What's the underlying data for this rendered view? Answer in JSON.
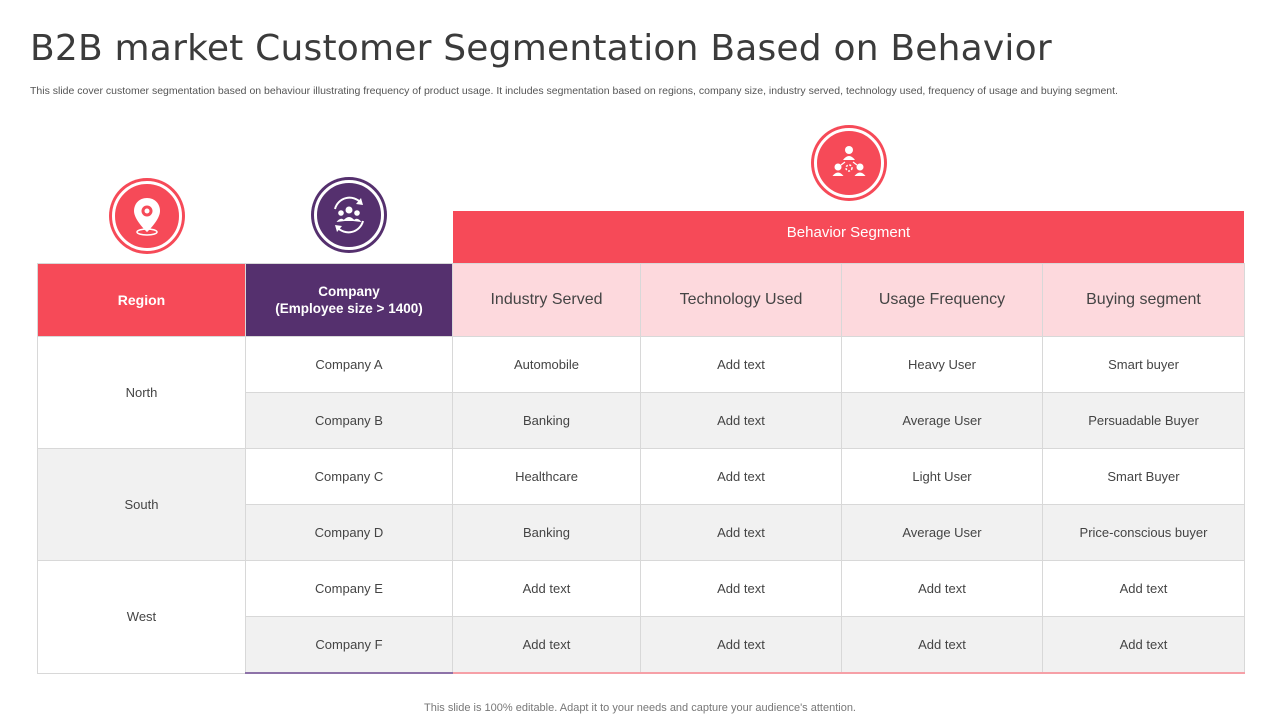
{
  "title": "B2B market Customer Segmentation Based on Behavior",
  "subtitle": "This slide cover customer segmentation based on behaviour illustrating frequency of product usage. It includes segmentation based on regions, company size, industry served, technology used, frequency of  usage and  buying segment.",
  "icons": {
    "region": "location-pin-icon",
    "company": "team-cycle-icon",
    "behavior": "network-people-icon"
  },
  "colors": {
    "accent_red": "#f64a58",
    "accent_purple": "#55306e",
    "header_pink": "#fdd9dd",
    "row_alt": "#f1f1f1"
  },
  "behavior_segment_label": "Behavior Segment",
  "table": {
    "headers": {
      "region": "Region",
      "company_line1": "Company",
      "company_line2": "(Employee size > 1400)",
      "industry": "Industry  Served",
      "technology": "Technology  Used",
      "usage": "Usage Frequency",
      "buying": "Buying segment"
    },
    "regions": [
      "North",
      "South",
      "West"
    ],
    "rows": [
      {
        "company": "Company A",
        "industry": "Automobile",
        "technology": "Add text",
        "usage": "Heavy  User",
        "buying": "Smart buyer"
      },
      {
        "company": "Company B",
        "industry": "Banking",
        "technology": "Add text",
        "usage": "Average  User",
        "buying": "Persuadable  Buyer"
      },
      {
        "company": "Company C",
        "industry": "Healthcare",
        "technology": "Add text",
        "usage": "Light User",
        "buying": "Smart Buyer"
      },
      {
        "company": "Company D",
        "industry": "Banking",
        "technology": "Add text",
        "usage": "Average  User",
        "buying": "Price-conscious buyer"
      },
      {
        "company": "Company E",
        "industry": "Add text",
        "technology": "Add text",
        "usage": "Add text",
        "buying": "Add text"
      },
      {
        "company": "Company F",
        "industry": "Add text",
        "technology": "Add text",
        "usage": "Add text",
        "buying": "Add text"
      }
    ]
  },
  "footer": "This slide is 100% editable. Adapt it to your needs and capture your audience's attention."
}
